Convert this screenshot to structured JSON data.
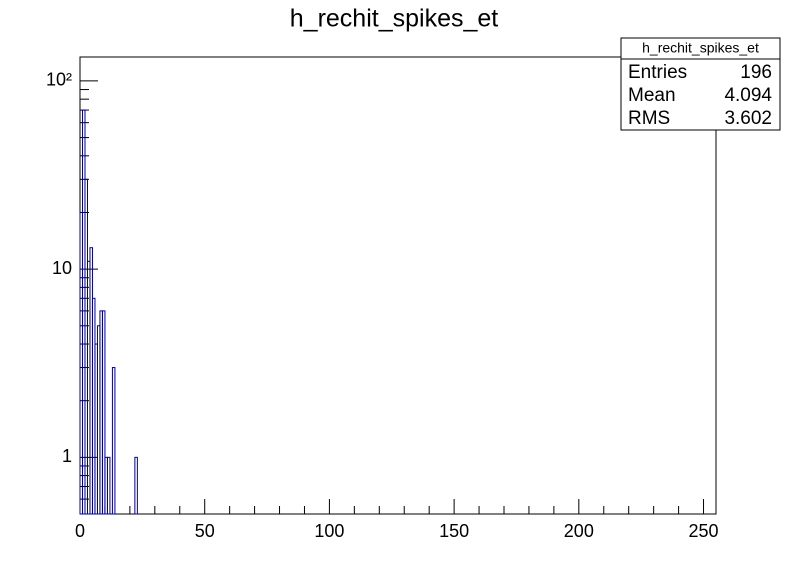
{
  "chart_data": {
    "type": "histogram",
    "title": "h_rechit_spikes_et",
    "bins": [
      0,
      1,
      2,
      3,
      4,
      5,
      6,
      7,
      8,
      9,
      10,
      11,
      12,
      13,
      14,
      15,
      16,
      17,
      18,
      19,
      20,
      21,
      22,
      23
    ],
    "values": [
      20,
      70,
      30,
      11,
      13,
      7,
      4,
      5,
      6,
      6,
      1,
      1,
      0,
      3,
      0,
      0,
      0,
      0,
      0,
      0,
      0,
      0,
      1
    ],
    "color": "#000099",
    "xlim": [
      0,
      255
    ],
    "xticks": [
      0,
      50,
      100,
      150,
      200,
      250
    ],
    "ylim": [
      0.5,
      134
    ],
    "yticks": [
      1,
      10,
      {
        "value": 100,
        "label": "10²"
      }
    ],
    "log_y": true,
    "stats": {
      "title": "h_rechit_spikes_et",
      "rows": [
        {
          "label": "Entries",
          "value": 196
        },
        {
          "label": "Mean",
          "value": 4.094
        },
        {
          "label": "RMS",
          "value": 3.602
        }
      ]
    }
  }
}
